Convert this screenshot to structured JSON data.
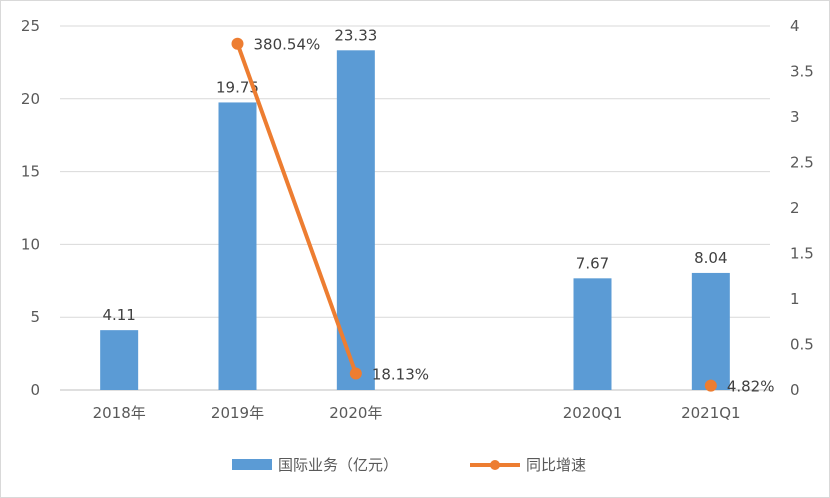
{
  "chart_data": {
    "type": "bar",
    "categories": [
      "2018年",
      "2019年",
      "2020年",
      "",
      "2020Q1",
      "2021Q1"
    ],
    "series": [
      {
        "name": "国际业务（亿元）",
        "kind": "bar",
        "axis": "left",
        "color": "#5B9BD5",
        "values": [
          4.11,
          19.75,
          23.33,
          null,
          7.67,
          8.04
        ],
        "labels": [
          "4.11",
          "19.75",
          "23.33",
          "",
          "7.67",
          "8.04"
        ]
      },
      {
        "name": "同比增速",
        "kind": "line",
        "axis": "right",
        "color": "#ED7D31",
        "values": [
          null,
          3.8054,
          0.1813,
          null,
          null,
          0.0482
        ],
        "labels": [
          "",
          "380.54%",
          "18.13%",
          "",
          "",
          "4.82%"
        ],
        "connected_points": [
          1,
          2
        ]
      }
    ],
    "y_left": {
      "ylim": [
        0,
        25
      ],
      "ticks": [
        "0",
        "5",
        "10",
        "15",
        "20",
        "25"
      ]
    },
    "y_right": {
      "ylim": [
        0,
        4
      ],
      "ticks": [
        "0",
        "0.5",
        "1",
        "1.5",
        "2",
        "2.5",
        "3",
        "3.5",
        "4"
      ]
    },
    "grid": true,
    "legend": "bottom"
  }
}
